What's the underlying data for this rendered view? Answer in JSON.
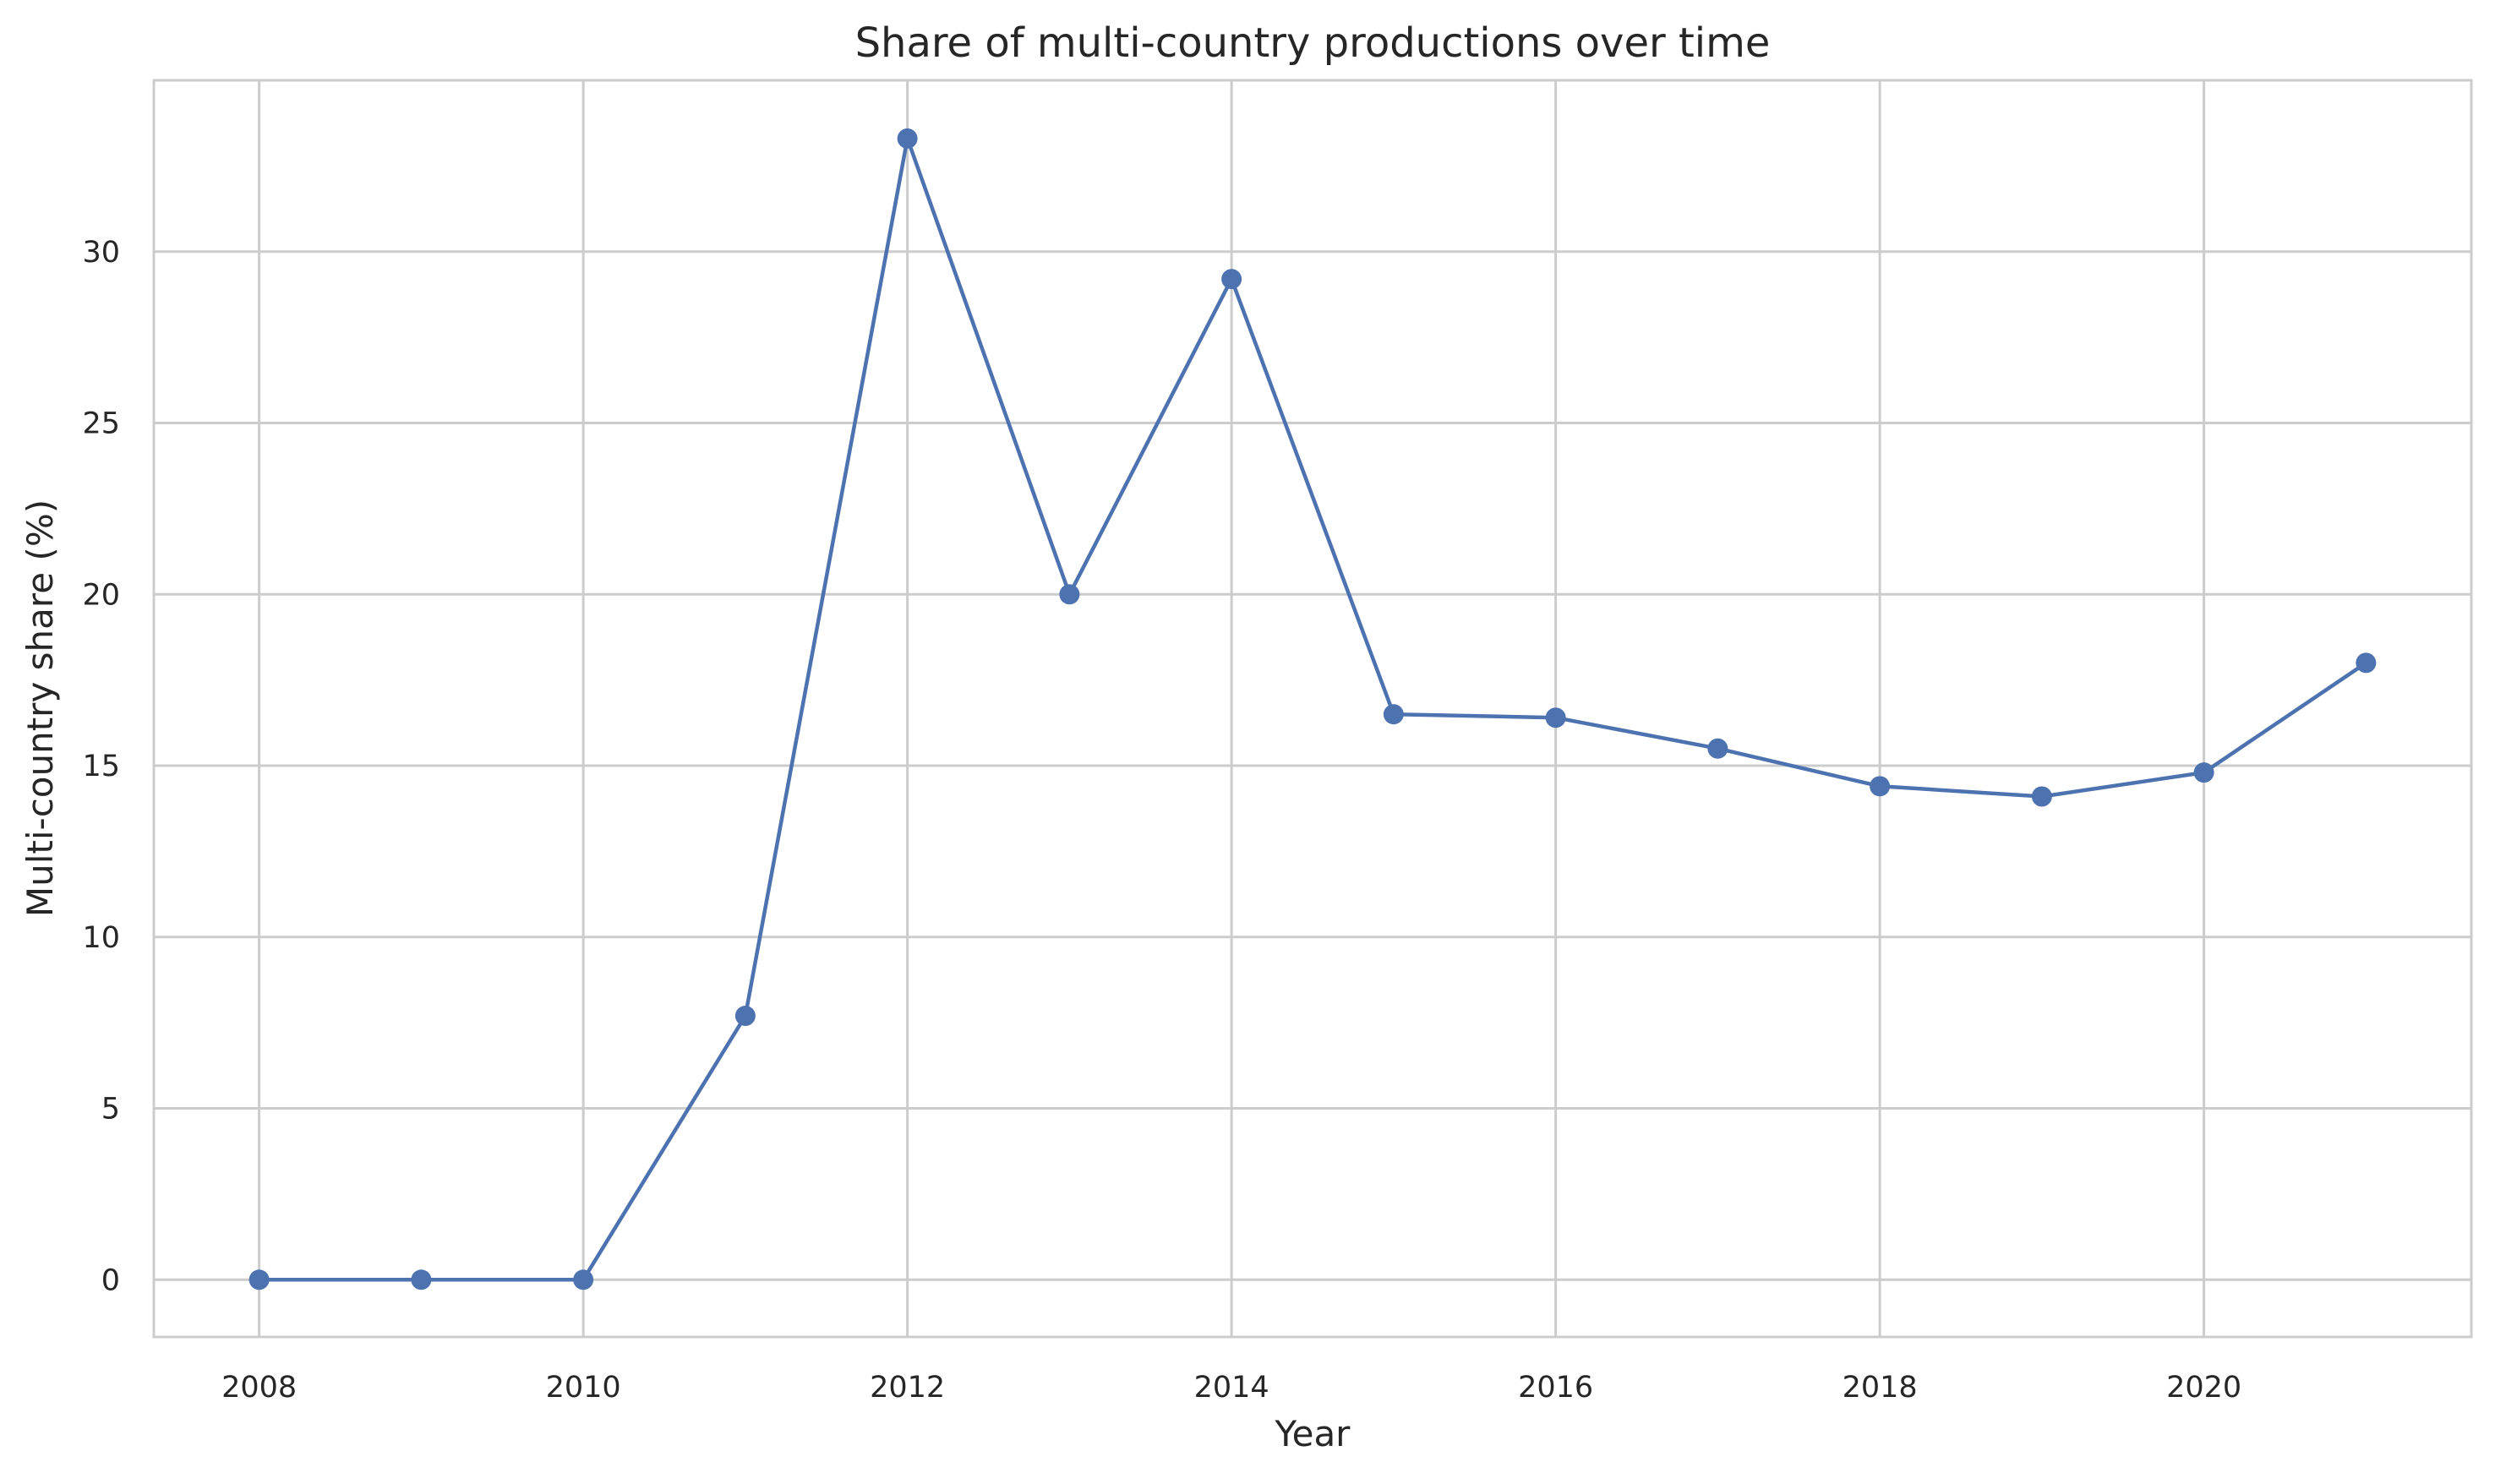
{
  "chart_data": {
    "type": "line",
    "title": "Share of multi-country productions over time",
    "xlabel": "Year",
    "ylabel": "Multi-country share (%)",
    "x": [
      2008,
      2009,
      2010,
      2011,
      2012,
      2013,
      2014,
      2015,
      2016,
      2017,
      2018,
      2019,
      2020,
      2021
    ],
    "series": [
      {
        "values": [
          0,
          0,
          0,
          7.7,
          33.3,
          20.0,
          29.2,
          16.5,
          16.4,
          15.5,
          14.4,
          14.1,
          14.8,
          18.0
        ],
        "color": "#4c72b0",
        "marker": "circle"
      }
    ],
    "xticks": [
      2008,
      2010,
      2012,
      2014,
      2016,
      2018,
      2020
    ],
    "yticks": [
      0,
      5,
      10,
      15,
      20,
      25,
      30
    ],
    "xlim": [
      2007.35,
      2021.65
    ],
    "ylim": [
      -1.67,
      35.0
    ],
    "grid": true,
    "legend": "none",
    "colors": {
      "grid": "#cccccc",
      "spine": "#cccccc",
      "text": "#262626",
      "background": "#ffffff"
    }
  }
}
